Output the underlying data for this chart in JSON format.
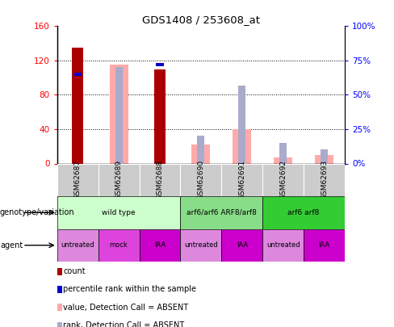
{
  "title": "GDS1408 / 253608_at",
  "samples": [
    "GSM62687",
    "GSM62689",
    "GSM62688",
    "GSM62690",
    "GSM62691",
    "GSM62692",
    "GSM62693"
  ],
  "count_values": [
    135,
    0,
    110,
    0,
    0,
    0,
    0
  ],
  "percentile_rank_values": [
    65,
    0,
    72,
    0,
    0,
    0,
    0
  ],
  "absent_value": [
    0,
    115,
    0,
    22,
    40,
    7,
    10
  ],
  "absent_rank_pct": [
    0,
    70,
    0,
    20,
    57,
    15,
    10
  ],
  "ylim_left": [
    0,
    160
  ],
  "ylim_right": [
    0,
    100
  ],
  "yticks_left": [
    0,
    40,
    80,
    120,
    160
  ],
  "yticks_right": [
    0,
    25,
    50,
    75,
    100
  ],
  "yticklabels_left": [
    "0",
    "40",
    "80",
    "120",
    "160"
  ],
  "yticklabels_right": [
    "0%",
    "25%",
    "50%",
    "75%",
    "100%"
  ],
  "color_count": "#aa0000",
  "color_percentile": "#0000cc",
  "color_absent_value": "#ffaaaa",
  "color_absent_rank": "#aaaacc",
  "genotype_groups": [
    {
      "label": "wild type",
      "start": 0,
      "end": 3,
      "color": "#ccffcc"
    },
    {
      "label": "arf6/arf6 ARF8/arf8",
      "start": 3,
      "end": 5,
      "color": "#88dd88"
    },
    {
      "label": "arf6 arf8",
      "start": 5,
      "end": 7,
      "color": "#33cc33"
    }
  ],
  "agent_labels": [
    "untreated",
    "mock",
    "IAA",
    "untreated",
    "IAA",
    "untreated",
    "IAA"
  ],
  "agent_colors": [
    "#dd88dd",
    "#dd44dd",
    "#cc00cc",
    "#dd88dd",
    "#cc00cc",
    "#dd88dd",
    "#cc00cc"
  ],
  "legend_items": [
    {
      "label": "count",
      "color": "#aa0000"
    },
    {
      "label": "percentile rank within the sample",
      "color": "#0000cc"
    },
    {
      "label": "value, Detection Call = ABSENT",
      "color": "#ffaaaa"
    },
    {
      "label": "rank, Detection Call = ABSENT",
      "color": "#aaaacc"
    }
  ]
}
